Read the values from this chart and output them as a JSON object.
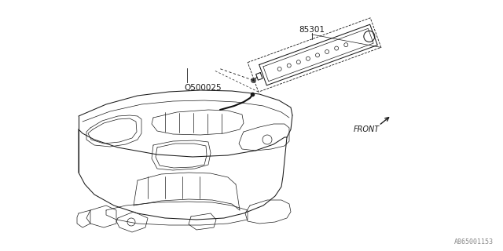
{
  "bg_color": "#ffffff",
  "line_color": "#1a1a1a",
  "fig_width": 6.4,
  "fig_height": 3.2,
  "dpi": 100,
  "part_number_85301": "85301",
  "part_number_Q500025": "Q500025",
  "label_front": "FRONT",
  "diagram_id": "A865001153",
  "lw_main": 0.75,
  "lw_thin": 0.5,
  "lw_thick": 1.5
}
